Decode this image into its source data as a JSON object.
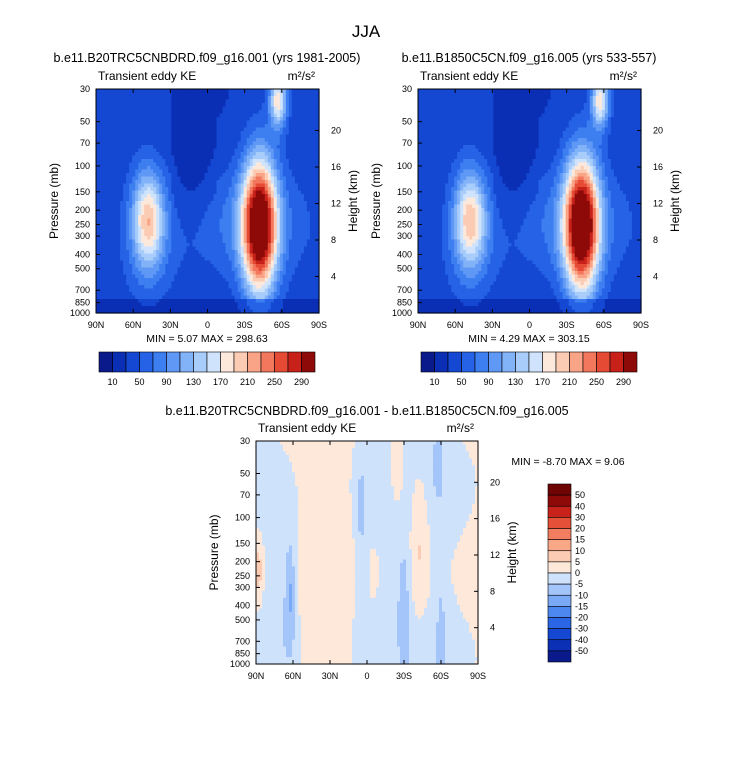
{
  "page_title": "JJA",
  "chart_data": [
    {
      "type": "contour",
      "id": "p1",
      "title": "b.e11.B20TRC5CNBDRD.f09_g16.001 (yrs 1981-2005)",
      "variable": "Transient eddy KE",
      "units": "m²/s²",
      "x_ticks": [
        "90N",
        "60N",
        "30N",
        "0",
        "30S",
        "60S",
        "90S"
      ],
      "xlim": [
        90,
        -90
      ],
      "y_ticks": [
        30,
        50,
        70,
        100,
        150,
        200,
        250,
        300,
        400,
        500,
        700,
        850,
        1000
      ],
      "ylim_mb": [
        1000,
        30
      ],
      "ylabel": "Pressure (mb)",
      "y2_ticks": [
        4,
        8,
        12,
        16,
        20
      ],
      "y2label": "Height (km)",
      "stats_text": "MIN =  5.07  MAX = 298.63",
      "min": 5.07,
      "max": 298.63,
      "levels": [
        10,
        30,
        50,
        70,
        90,
        110,
        130,
        150,
        170,
        190,
        210,
        230,
        250,
        270,
        290
      ],
      "colorbar_labels": [
        "10",
        "50",
        "90",
        "130",
        "170",
        "210",
        "250",
        "290"
      ],
      "features": [
        {
          "lat": 48,
          "p": 230,
          "peak": 160,
          "sx": 13,
          "sy": 0.22
        },
        {
          "lat": -42,
          "p": 255,
          "peak": 298,
          "sx": 14,
          "sy": 0.3
        },
        {
          "lat": -57,
          "p": 36,
          "peak": 150,
          "sx": 7,
          "sy": 0.12
        }
      ]
    },
    {
      "type": "contour",
      "id": "p2",
      "title": "b.e11.B1850C5CN.f09_g16.005 (yrs 533-557)",
      "variable": "Transient eddy KE",
      "units": "m²/s²",
      "x_ticks": [
        "90N",
        "60N",
        "30N",
        "0",
        "30S",
        "60S",
        "90S"
      ],
      "xlim": [
        90,
        -90
      ],
      "y_ticks": [
        30,
        50,
        70,
        100,
        150,
        200,
        250,
        300,
        400,
        500,
        700,
        850,
        1000
      ],
      "ylim_mb": [
        1000,
        30
      ],
      "ylabel": "Pressure (mb)",
      "y2_ticks": [
        4,
        8,
        12,
        16,
        20
      ],
      "y2label": "Height (km)",
      "stats_text": "MIN =  4.29  MAX = 303.15",
      "min": 4.29,
      "max": 303.15,
      "levels": [
        10,
        30,
        50,
        70,
        90,
        110,
        130,
        150,
        170,
        190,
        210,
        230,
        250,
        270,
        290
      ],
      "colorbar_labels": [
        "10",
        "50",
        "90",
        "130",
        "170",
        "210",
        "250",
        "290"
      ],
      "features": [
        {
          "lat": 48,
          "p": 230,
          "peak": 158,
          "sx": 13,
          "sy": 0.22
        },
        {
          "lat": -42,
          "p": 255,
          "peak": 303,
          "sx": 14,
          "sy": 0.3
        },
        {
          "lat": -57,
          "p": 36,
          "peak": 150,
          "sx": 7,
          "sy": 0.12
        }
      ]
    },
    {
      "type": "contour",
      "id": "p3",
      "title": "b.e11.B20TRC5CNBDRD.f09_g16.001 - b.e11.B1850C5CN.f09_g16.005",
      "variable": "Transient eddy KE",
      "units": "m²/s²",
      "x_ticks": [
        "90N",
        "60N",
        "30N",
        "0",
        "30S",
        "60S",
        "90S"
      ],
      "xlim": [
        90,
        -90
      ],
      "y_ticks": [
        30,
        50,
        70,
        100,
        150,
        200,
        250,
        300,
        400,
        500,
        700,
        850,
        1000
      ],
      "ylim_mb": [
        1000,
        30
      ],
      "ylabel": "Pressure (mb)",
      "y2_ticks": [
        4,
        8,
        12,
        16,
        20
      ],
      "y2label": "Height (km)",
      "stats_text": "MIN = -8.70  MAX =  9.06",
      "min": -8.7,
      "max": 9.06,
      "levels": [
        -50,
        -40,
        -30,
        -20,
        -15,
        -10,
        -5,
        0,
        5,
        10,
        15,
        20,
        30,
        40,
        50
      ],
      "colorbar_labels": [
        "50",
        "40",
        "30",
        "20",
        "15",
        "10",
        "5",
        "0",
        "-5",
        "-10",
        "-15",
        "-20",
        "-30",
        "-40",
        "-50"
      ],
      "features": [
        {
          "lat": -42,
          "p": 150,
          "peak": 7,
          "sx": 8,
          "sy": 0.35
        },
        {
          "lat": -25,
          "p": 45,
          "peak": 6,
          "sx": 6,
          "sy": 0.2
        },
        {
          "lat": 88,
          "p": 230,
          "peak": 8,
          "sx": 4,
          "sy": 0.15
        },
        {
          "lat": 62,
          "p": 320,
          "peak": -9,
          "sx": 4,
          "sy": 0.25
        },
        {
          "lat": 70,
          "p": 450,
          "peak": -5,
          "sx": 15,
          "sy": 0.55
        },
        {
          "lat": 5,
          "p": 130,
          "peak": -6,
          "sx": 5,
          "sy": 0.55
        },
        {
          "lat": -30,
          "p": 350,
          "peak": -6,
          "sx": 6,
          "sy": 0.3
        },
        {
          "lat": -58,
          "p": 40,
          "peak": -5,
          "sx": 5,
          "sy": 0.2
        },
        {
          "lat": -60,
          "p": 600,
          "peak": -5,
          "sx": 4,
          "sy": 0.3
        }
      ]
    }
  ]
}
